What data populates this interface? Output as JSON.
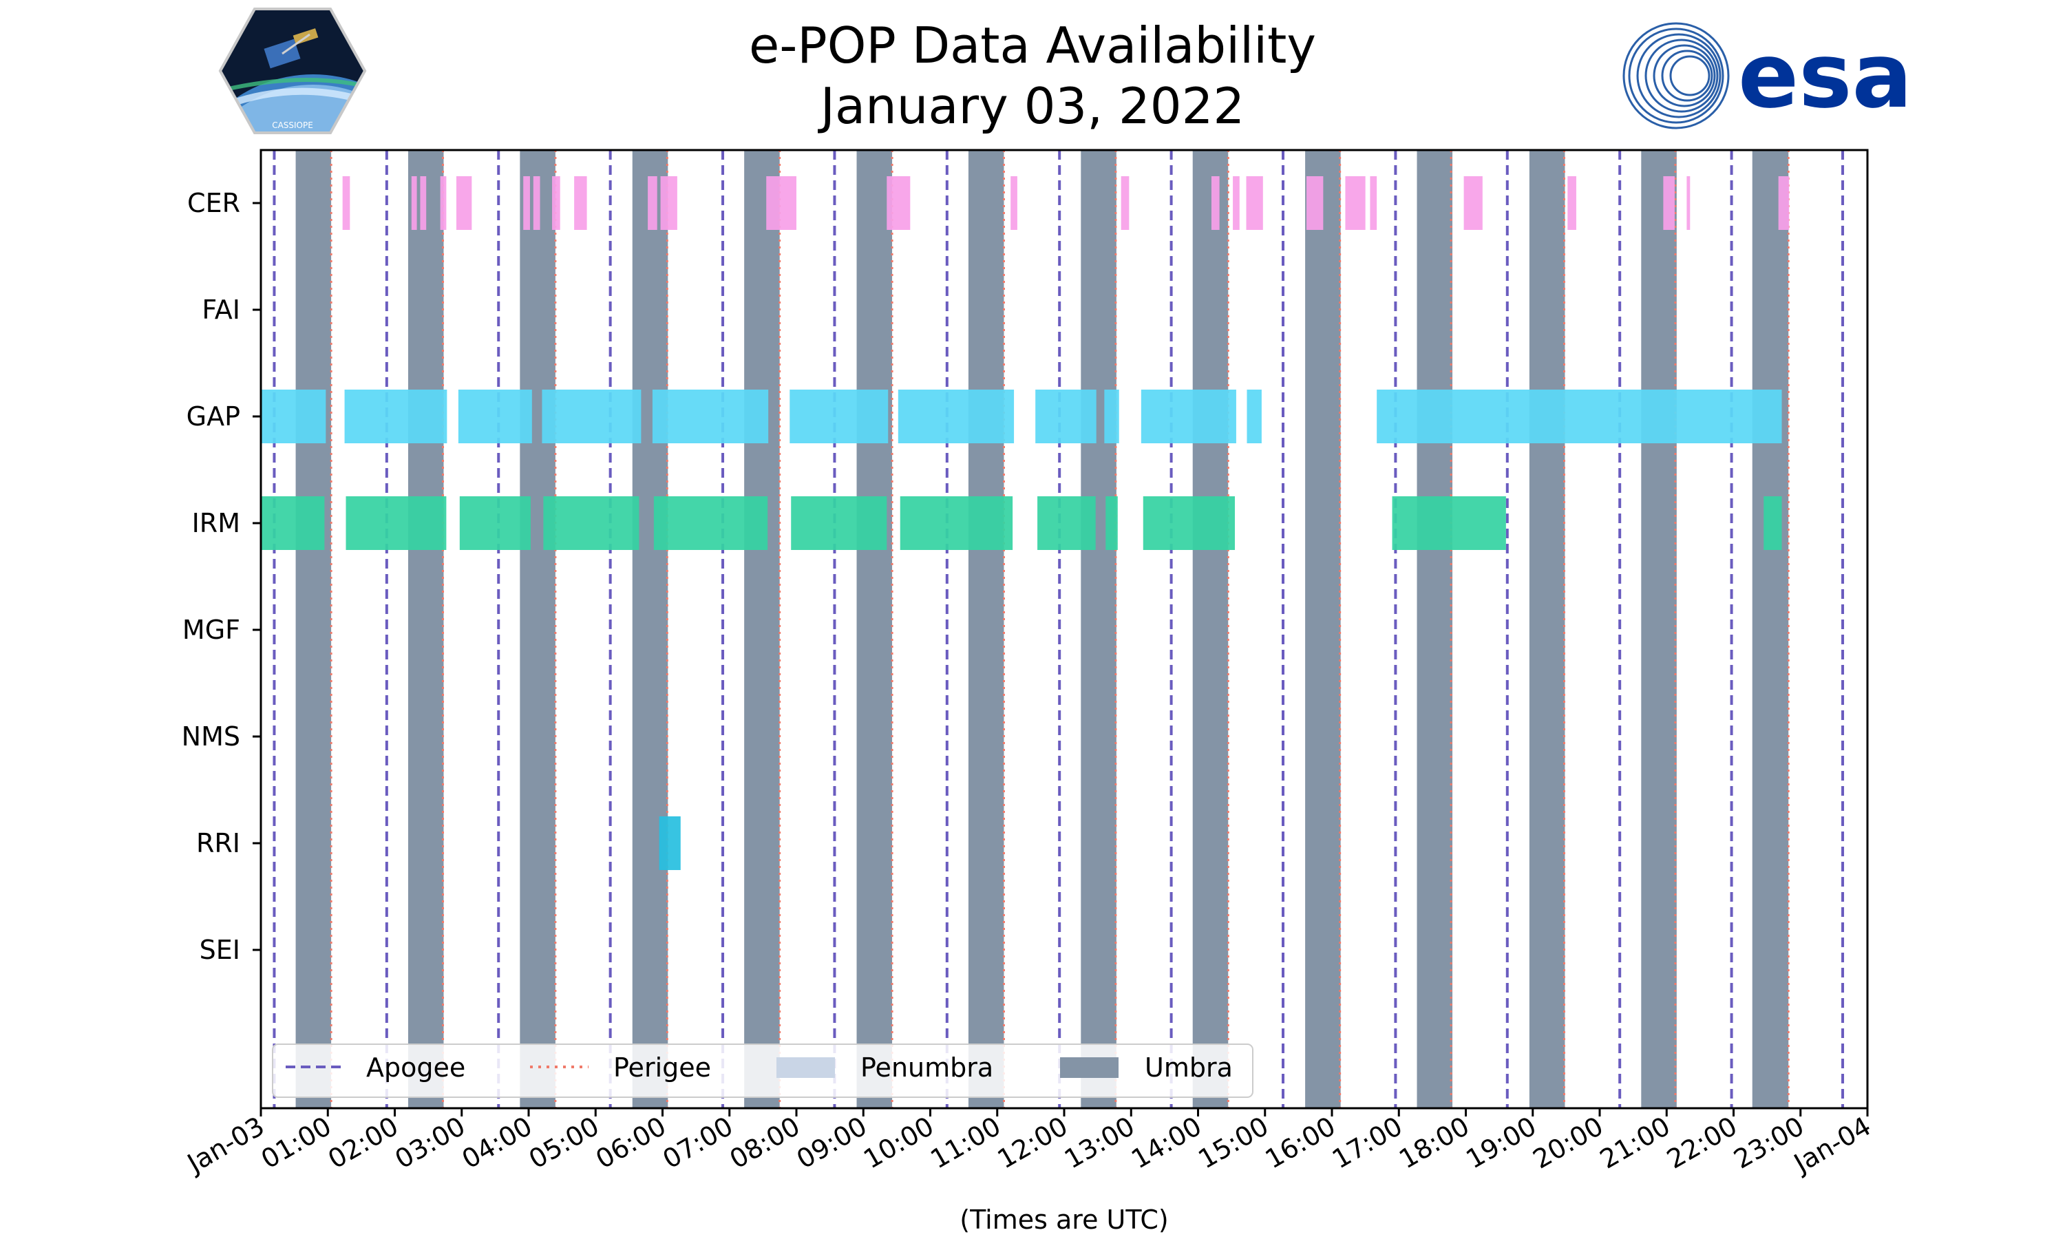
{
  "page": {
    "title_line1": "e-POP Data Availability",
    "title_line2": "January 03, 2022",
    "mission_logo_text": "CASSIOPE",
    "esa_logo_text": "esa"
  },
  "colors": {
    "apogee": "#6a5cbf",
    "perigee": "#f07a6a",
    "penumbra": "#c9d5e6",
    "umbra": "#8494a6",
    "CER": "#f7a0e8",
    "GAP": "#5bd8f6",
    "IRM": "#36d3a3",
    "RRI": "#28c0e0"
  },
  "chart_data": {
    "type": "timeline",
    "title": "e-POP Data Availability January 03, 2022",
    "xlabel": "(Times are UTC)",
    "x_unit": "hours since 2022-01-03 00:00 UTC",
    "xlim": [
      0,
      24
    ],
    "x_ticks": [
      {
        "value": 0,
        "label": "Jan-03"
      },
      {
        "value": 1,
        "label": "01:00"
      },
      {
        "value": 2,
        "label": "02:00"
      },
      {
        "value": 3,
        "label": "03:00"
      },
      {
        "value": 4,
        "label": "04:00"
      },
      {
        "value": 5,
        "label": "05:00"
      },
      {
        "value": 6,
        "label": "06:00"
      },
      {
        "value": 7,
        "label": "07:00"
      },
      {
        "value": 8,
        "label": "08:00"
      },
      {
        "value": 9,
        "label": "09:00"
      },
      {
        "value": 10,
        "label": "10:00"
      },
      {
        "value": 11,
        "label": "11:00"
      },
      {
        "value": 12,
        "label": "12:00"
      },
      {
        "value": 13,
        "label": "13:00"
      },
      {
        "value": 14,
        "label": "14:00"
      },
      {
        "value": 15,
        "label": "15:00"
      },
      {
        "value": 16,
        "label": "16:00"
      },
      {
        "value": 17,
        "label": "17:00"
      },
      {
        "value": 18,
        "label": "18:00"
      },
      {
        "value": 19,
        "label": "19:00"
      },
      {
        "value": 20,
        "label": "20:00"
      },
      {
        "value": 21,
        "label": "21:00"
      },
      {
        "value": 22,
        "label": "22:00"
      },
      {
        "value": 23,
        "label": "23:00"
      },
      {
        "value": 24,
        "label": "Jan-04"
      }
    ],
    "instruments": [
      "CER",
      "FAI",
      "GAP",
      "IRM",
      "MGF",
      "NMS",
      "RRI",
      "SEI"
    ],
    "apogee_hours": [
      0.2,
      1.88,
      3.55,
      5.22,
      6.9,
      8.57,
      10.25,
      11.93,
      13.6,
      15.27,
      16.95,
      18.62,
      20.3,
      21.97,
      23.63
    ],
    "perigee_hours": [
      1.05,
      2.72,
      4.4,
      6.07,
      7.75,
      9.43,
      11.1,
      12.77,
      14.45,
      16.12,
      17.78,
      19.47,
      21.13,
      22.82
    ],
    "umbra": [
      [
        0.52,
        1.05
      ],
      [
        2.2,
        2.73
      ],
      [
        3.87,
        4.4
      ],
      [
        5.55,
        6.08
      ],
      [
        7.22,
        7.75
      ],
      [
        8.9,
        9.43
      ],
      [
        10.57,
        11.1
      ],
      [
        12.25,
        12.78
      ],
      [
        13.92,
        14.45
      ],
      [
        15.6,
        16.13
      ],
      [
        17.27,
        17.8
      ],
      [
        18.95,
        19.48
      ],
      [
        20.62,
        21.15
      ],
      [
        22.28,
        22.82
      ]
    ],
    "penumbra": [],
    "availability": {
      "CER": [
        [
          1.22,
          1.33
        ],
        [
          2.25,
          2.33
        ],
        [
          2.38,
          2.47
        ],
        [
          2.68,
          2.77
        ],
        [
          2.92,
          3.15
        ],
        [
          3.92,
          4.02
        ],
        [
          4.07,
          4.17
        ],
        [
          4.35,
          4.47
        ],
        [
          4.68,
          4.87
        ],
        [
          5.78,
          5.92
        ],
        [
          5.97,
          6.22
        ],
        [
          7.55,
          8.0
        ],
        [
          9.35,
          9.7
        ],
        [
          11.2,
          11.3
        ],
        [
          12.85,
          12.97
        ],
        [
          14.2,
          14.32
        ],
        [
          14.52,
          14.62
        ],
        [
          14.72,
          14.97
        ],
        [
          15.62,
          15.87
        ],
        [
          16.2,
          16.5
        ],
        [
          16.57,
          16.67
        ],
        [
          17.97,
          18.25
        ],
        [
          19.52,
          19.65
        ],
        [
          20.95,
          21.12
        ],
        [
          21.3,
          21.35
        ],
        [
          22.67,
          22.83
        ]
      ],
      "FAI": [],
      "GAP": [
        [
          0.0,
          0.97
        ],
        [
          1.25,
          2.78
        ],
        [
          2.95,
          4.05
        ],
        [
          4.2,
          5.68
        ],
        [
          5.85,
          7.58
        ],
        [
          7.9,
          9.37
        ],
        [
          9.52,
          11.25
        ],
        [
          11.57,
          12.48
        ],
        [
          12.6,
          12.82
        ],
        [
          13.15,
          14.57
        ],
        [
          14.73,
          14.95
        ],
        [
          16.67,
          22.72
        ]
      ],
      "IRM": [
        [
          0.0,
          0.95
        ],
        [
          1.27,
          2.77
        ],
        [
          2.97,
          4.03
        ],
        [
          4.22,
          5.65
        ],
        [
          5.87,
          7.57
        ],
        [
          7.92,
          9.35
        ],
        [
          9.55,
          11.23
        ],
        [
          11.6,
          12.47
        ],
        [
          12.62,
          12.8
        ],
        [
          13.18,
          14.55
        ],
        [
          16.9,
          18.6
        ],
        [
          22.45,
          22.72
        ]
      ],
      "MGF": [],
      "NMS": [],
      "RRI": [
        [
          5.95,
          6.27
        ]
      ],
      "SEI": []
    },
    "legend": {
      "placement": "lower-left",
      "entries": [
        "Apogee",
        "Perigee",
        "Penumbra",
        "Umbra"
      ]
    }
  }
}
